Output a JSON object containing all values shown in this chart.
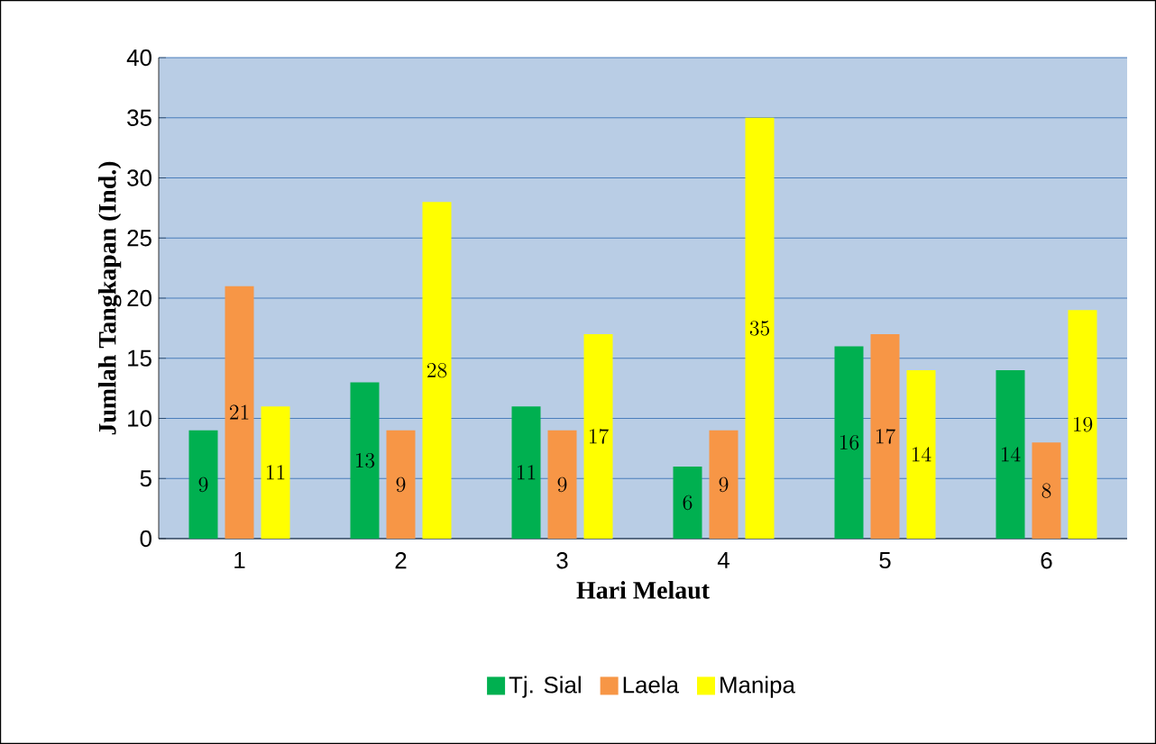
{
  "chart_data": {
    "type": "bar",
    "xlabel": "Hari Melaut",
    "ylabel": "Jumlah Tangkapan (Ind.)",
    "categories": [
      "1",
      "2",
      "3",
      "4",
      "5",
      "6"
    ],
    "series": [
      {
        "name": "Tj. Sial",
        "color": "#00b050",
        "values": [
          9,
          13,
          11,
          6,
          16,
          14
        ]
      },
      {
        "name": "Laela",
        "color": "#f79646",
        "values": [
          21,
          9,
          9,
          9,
          17,
          8
        ]
      },
      {
        "name": "Manipa",
        "color": "#ffff00",
        "values": [
          11,
          28,
          17,
          35,
          14,
          19
        ]
      }
    ],
    "ylim": [
      0,
      40
    ],
    "yticks": [
      0,
      5,
      10,
      15,
      20,
      25,
      30,
      35,
      40
    ],
    "grid": "y",
    "legend": "bottom",
    "data_labels": true
  }
}
